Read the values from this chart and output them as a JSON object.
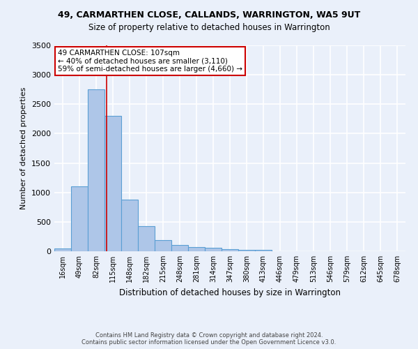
{
  "title1": "49, CARMARTHEN CLOSE, CALLANDS, WARRINGTON, WA5 9UT",
  "title2": "Size of property relative to detached houses in Warrington",
  "xlabel": "Distribution of detached houses by size in Warrington",
  "ylabel": "Number of detached properties",
  "bar_labels": [
    "16sqm",
    "49sqm",
    "82sqm",
    "115sqm",
    "148sqm",
    "182sqm",
    "215sqm",
    "248sqm",
    "281sqm",
    "314sqm",
    "347sqm",
    "380sqm",
    "413sqm",
    "446sqm",
    "479sqm",
    "513sqm",
    "546sqm",
    "579sqm",
    "612sqm",
    "645sqm",
    "678sqm"
  ],
  "bar_values": [
    50,
    1100,
    2750,
    2300,
    875,
    430,
    185,
    105,
    70,
    55,
    35,
    25,
    20,
    5,
    5,
    5,
    3,
    3,
    2,
    2,
    1
  ],
  "bar_color": "#aec6e8",
  "bar_edge_color": "#5a9fd4",
  "annotation_text": "49 CARMARTHEN CLOSE: 107sqm\n← 40% of detached houses are smaller (3,110)\n59% of semi-detached houses are larger (4,660) →",
  "annotation_box_color": "#ffffff",
  "annotation_box_edge": "#cc0000",
  "vline_color": "#cc0000",
  "vline_x": 2.62,
  "ylim": [
    0,
    3500
  ],
  "background_color": "#eaf0fa",
  "fig_background_color": "#eaf0fa",
  "grid_color": "#ffffff",
  "footer_line1": "Contains HM Land Registry data © Crown copyright and database right 2024.",
  "footer_line2": "Contains public sector information licensed under the Open Government Licence v3.0."
}
